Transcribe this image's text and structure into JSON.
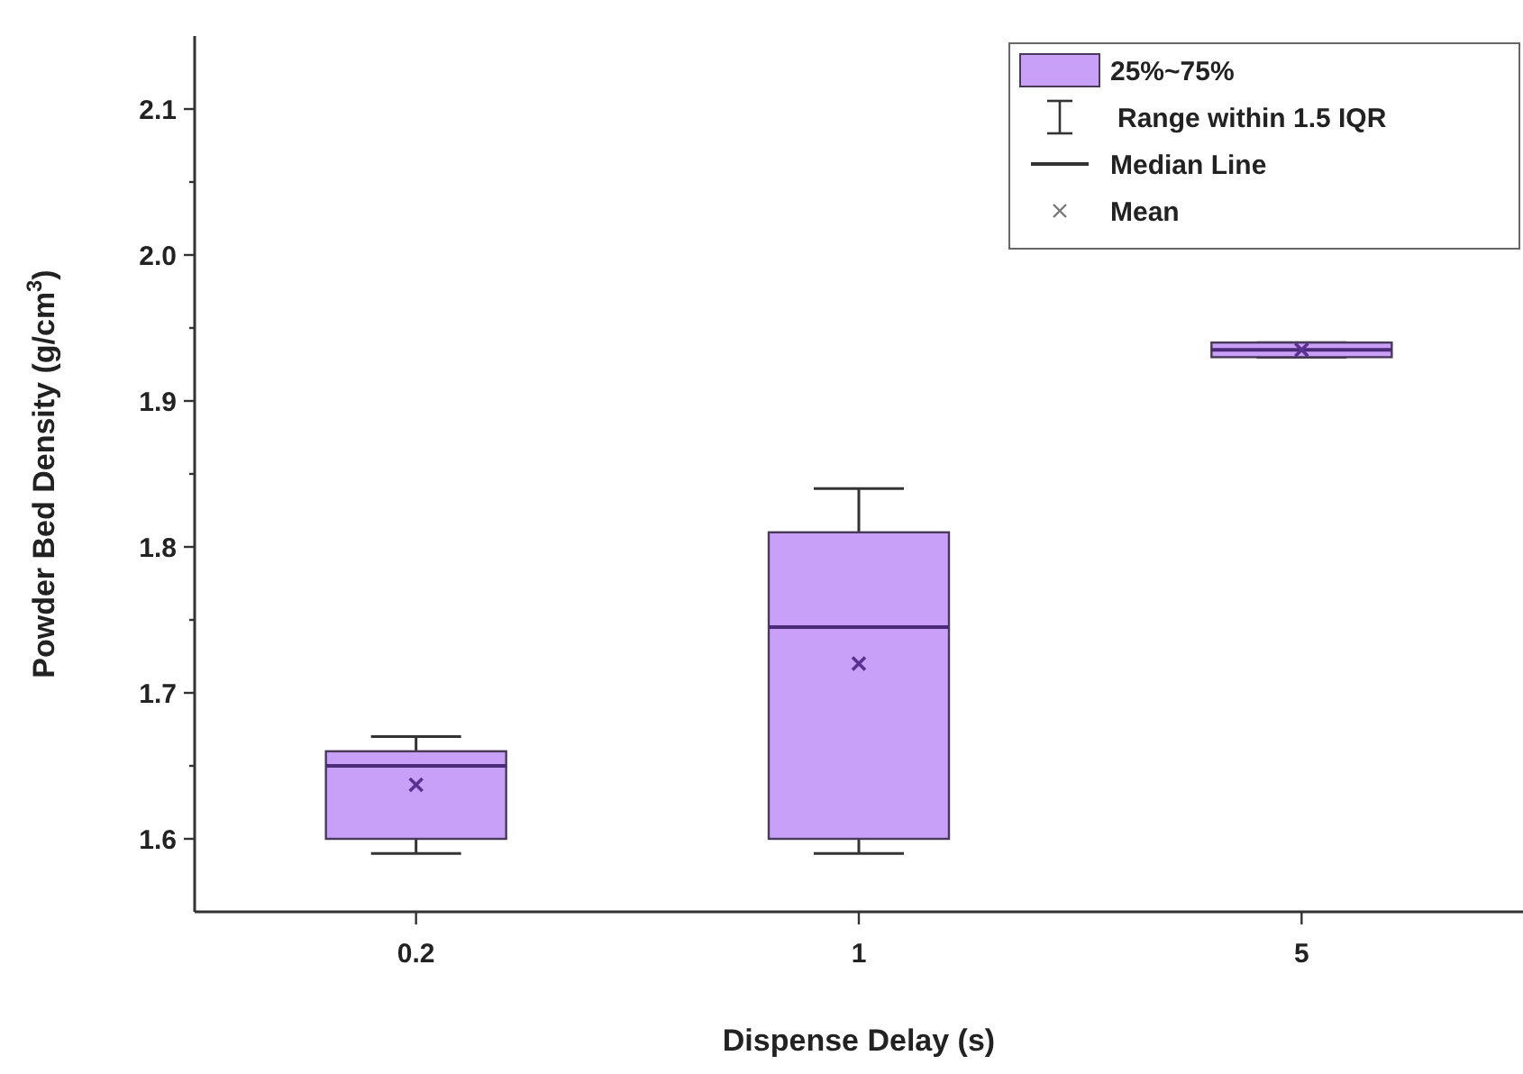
{
  "chart_data": {
    "type": "box",
    "xlabel": "Dispense Delay (s)",
    "ylabel": "Powder Bed Density (g/cm$^{3}$)",
    "categories": [
      "0.2",
      "1",
      "5"
    ],
    "series": [
      {
        "name": "25%~75%",
        "color": "#c9a0f8",
        "boxes": [
          {
            "low": 1.59,
            "q1": 1.6,
            "median": 1.65,
            "q3": 1.66,
            "high": 1.67,
            "mean": 1.637
          },
          {
            "low": 1.59,
            "q1": 1.6,
            "median": 1.745,
            "q3": 1.81,
            "high": 1.84,
            "mean": 1.72
          },
          {
            "low": 1.93,
            "q1": 1.93,
            "median": 1.935,
            "q3": 1.94,
            "high": 1.94,
            "mean": 1.935
          }
        ]
      }
    ],
    "annotations": [
      "Range within 1.5 IQR",
      "Median Line",
      "Mean"
    ],
    "ylim": [
      1.55,
      2.15
    ],
    "yticks": [
      1.6,
      {
        "value": 1.65,
        "label": null
      },
      1.7,
      {
        "value": 1.75,
        "label": null
      },
      1.8,
      {
        "value": 1.85,
        "label": null
      },
      1.9,
      {
        "value": 1.95,
        "label": null
      },
      {
        "value": 2.0,
        "label": "2.0"
      },
      {
        "value": 2.05,
        "label": null
      },
      2.1
    ],
    "legend": "top right",
    "marker": "cross",
    "grid": false
  }
}
